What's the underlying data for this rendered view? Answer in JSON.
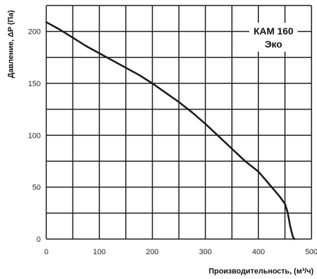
{
  "chart_data": {
    "type": "line",
    "xlabel": "Производительность, (м³/ч)",
    "ylabel": "Давление, ΔP (Па)",
    "xlim": [
      0,
      500
    ],
    "ylim": [
      0,
      225
    ],
    "grid": true,
    "legend_position": "top-right",
    "x_ticks": [
      "0",
      "100",
      "200",
      "300",
      "400",
      "500"
    ],
    "y_ticks": [
      "0",
      "50",
      "100",
      "150",
      "200"
    ],
    "series": [
      {
        "name": "КАМ 160 Эко",
        "color": "#1a1a1a",
        "points": [
          [
            0,
            209
          ],
          [
            25,
            202
          ],
          [
            50,
            194
          ],
          [
            75,
            186
          ],
          [
            100,
            179
          ],
          [
            125,
            172
          ],
          [
            150,
            165
          ],
          [
            175,
            158
          ],
          [
            200,
            150
          ],
          [
            225,
            141
          ],
          [
            250,
            132
          ],
          [
            275,
            122
          ],
          [
            300,
            111
          ],
          [
            325,
            99
          ],
          [
            350,
            87
          ],
          [
            375,
            75
          ],
          [
            400,
            65
          ],
          [
            420,
            53
          ],
          [
            440,
            41
          ],
          [
            450,
            34
          ],
          [
            455,
            26
          ],
          [
            460,
            12
          ],
          [
            465,
            2
          ],
          [
            468,
            0
          ]
        ]
      }
    ],
    "legend": {
      "line1": "КАМ 160",
      "line2": "Эко"
    }
  }
}
